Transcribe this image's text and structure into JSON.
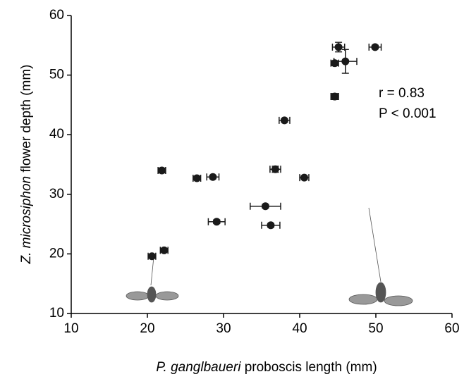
{
  "chart_data": {
    "type": "scatter",
    "x_label": {
      "italic": "P. ganglbaueri",
      "rest": " proboscis length (mm)"
    },
    "y_label": {
      "italic": "Z. microsiphon",
      "rest": " flower depth (mm)"
    },
    "annotations": [
      "r = 0.83",
      "P < 0.001"
    ],
    "color": "#1a1a1a",
    "x": [
      20.6,
      22.2,
      21.9,
      26.5,
      28.6,
      29.1,
      36.8,
      35.5,
      36.2,
      38.0,
      40.6,
      44.6,
      44.6,
      45.1,
      46.0,
      49.9
    ],
    "y": [
      19.6,
      20.6,
      34.0,
      32.7,
      32.9,
      25.4,
      34.2,
      28.0,
      24.8,
      42.4,
      32.8,
      46.4,
      52.0,
      54.7,
      52.3,
      54.7
    ],
    "xerr": [
      0.5,
      0.5,
      0.5,
      0.5,
      0.8,
      1.1,
      0.7,
      2.0,
      1.2,
      0.7,
      0.6,
      0.5,
      0.5,
      0.8,
      1.5,
      0.8
    ],
    "yerr": [
      0.3,
      0.3,
      0.4,
      0.3,
      0.3,
      0.3,
      0.5,
      0.3,
      0.3,
      0.3,
      0.3,
      0.5,
      0.4,
      0.8,
      2.0,
      0.3
    ],
    "xlim": [
      10,
      60
    ],
    "ylim": [
      10,
      60
    ],
    "xticks": [
      10,
      20,
      30,
      40,
      50,
      60
    ],
    "yticks": [
      10,
      20,
      30,
      40,
      50,
      60
    ]
  }
}
